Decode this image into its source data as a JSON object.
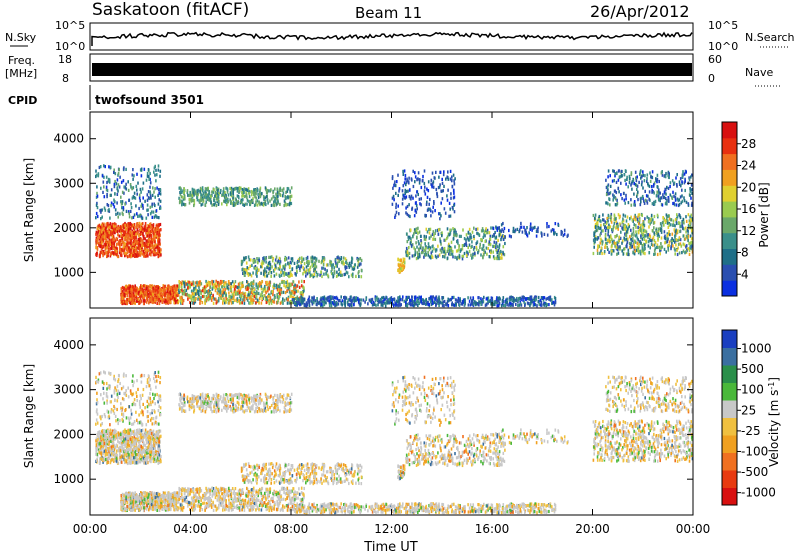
{
  "header": {
    "station": "Saskatoon (fitACF)",
    "beam": "Beam 11",
    "date": "26/Apr/2012"
  },
  "panels": {
    "noise": {
      "left_label": "N.Sky",
      "left_tick_top": "10^5",
      "left_tick_bottom": "10^0",
      "right_tick_top": "10^5",
      "right_tick_bottom": "10^0",
      "right_label": "N.Search"
    },
    "freq": {
      "left_label_line1": "Freq.",
      "left_label_line2": "[MHz]",
      "left_tick_top": "18",
      "left_tick_bottom": "8",
      "right_tick_top": "60",
      "right_tick_bottom": "0",
      "right_label": "Nave"
    },
    "cpid": {
      "label": "CPID",
      "value": "twofsound 3501"
    }
  },
  "colors": {
    "power": [
      "#0a2fe0",
      "#2a4fb0",
      "#1f6f88",
      "#3a8f8a",
      "#6aa86a",
      "#9acb50",
      "#e0d030",
      "#f0a020",
      "#f07020",
      "#e83010",
      "#d81010"
    ],
    "velocity": [
      "#d81010",
      "#e83a10",
      "#f07020",
      "#f0a020",
      "#f0c040",
      "#c8c8c8",
      "#4ab83a",
      "#2a8f4a",
      "#3a6fa0",
      "#1a3fc0"
    ]
  },
  "chart_data": [
    {
      "type": "heatmap",
      "name": "power",
      "ylabel": "Slant Range [km]",
      "xlabel": "Time UT",
      "x_ticks": [
        "00:00",
        "04:00",
        "08:00",
        "12:00",
        "16:00",
        "20:00",
        "00:00"
      ],
      "y_ticks": [
        "1000",
        "2000",
        "3000",
        "4000"
      ],
      "ylim": [
        200,
        4600
      ],
      "xlim_hours": [
        0,
        24
      ],
      "colorbar_label": "Power [dB]",
      "colorbar_ticks": [
        "4",
        "8",
        "12",
        "16",
        "20",
        "24",
        "28"
      ]
    },
    {
      "type": "heatmap",
      "name": "velocity",
      "ylabel": "Slant Range [km]",
      "xlabel": "Time UT",
      "x_ticks": [
        "00:00",
        "04:00",
        "08:00",
        "12:00",
        "16:00",
        "20:00",
        "00:00"
      ],
      "y_ticks": [
        "1000",
        "2000",
        "3000",
        "4000"
      ],
      "ylim": [
        200,
        4600
      ],
      "xlim_hours": [
        0,
        24
      ],
      "colorbar_label": "Velocity [m s",
      "colorbar_label_sup": "-1",
      "colorbar_label_end": "]",
      "colorbar_ticks": [
        "1000",
        "500",
        "100",
        "25",
        "-25",
        "-100",
        "-500",
        "-1000"
      ]
    }
  ],
  "xlabel": "Time UT"
}
